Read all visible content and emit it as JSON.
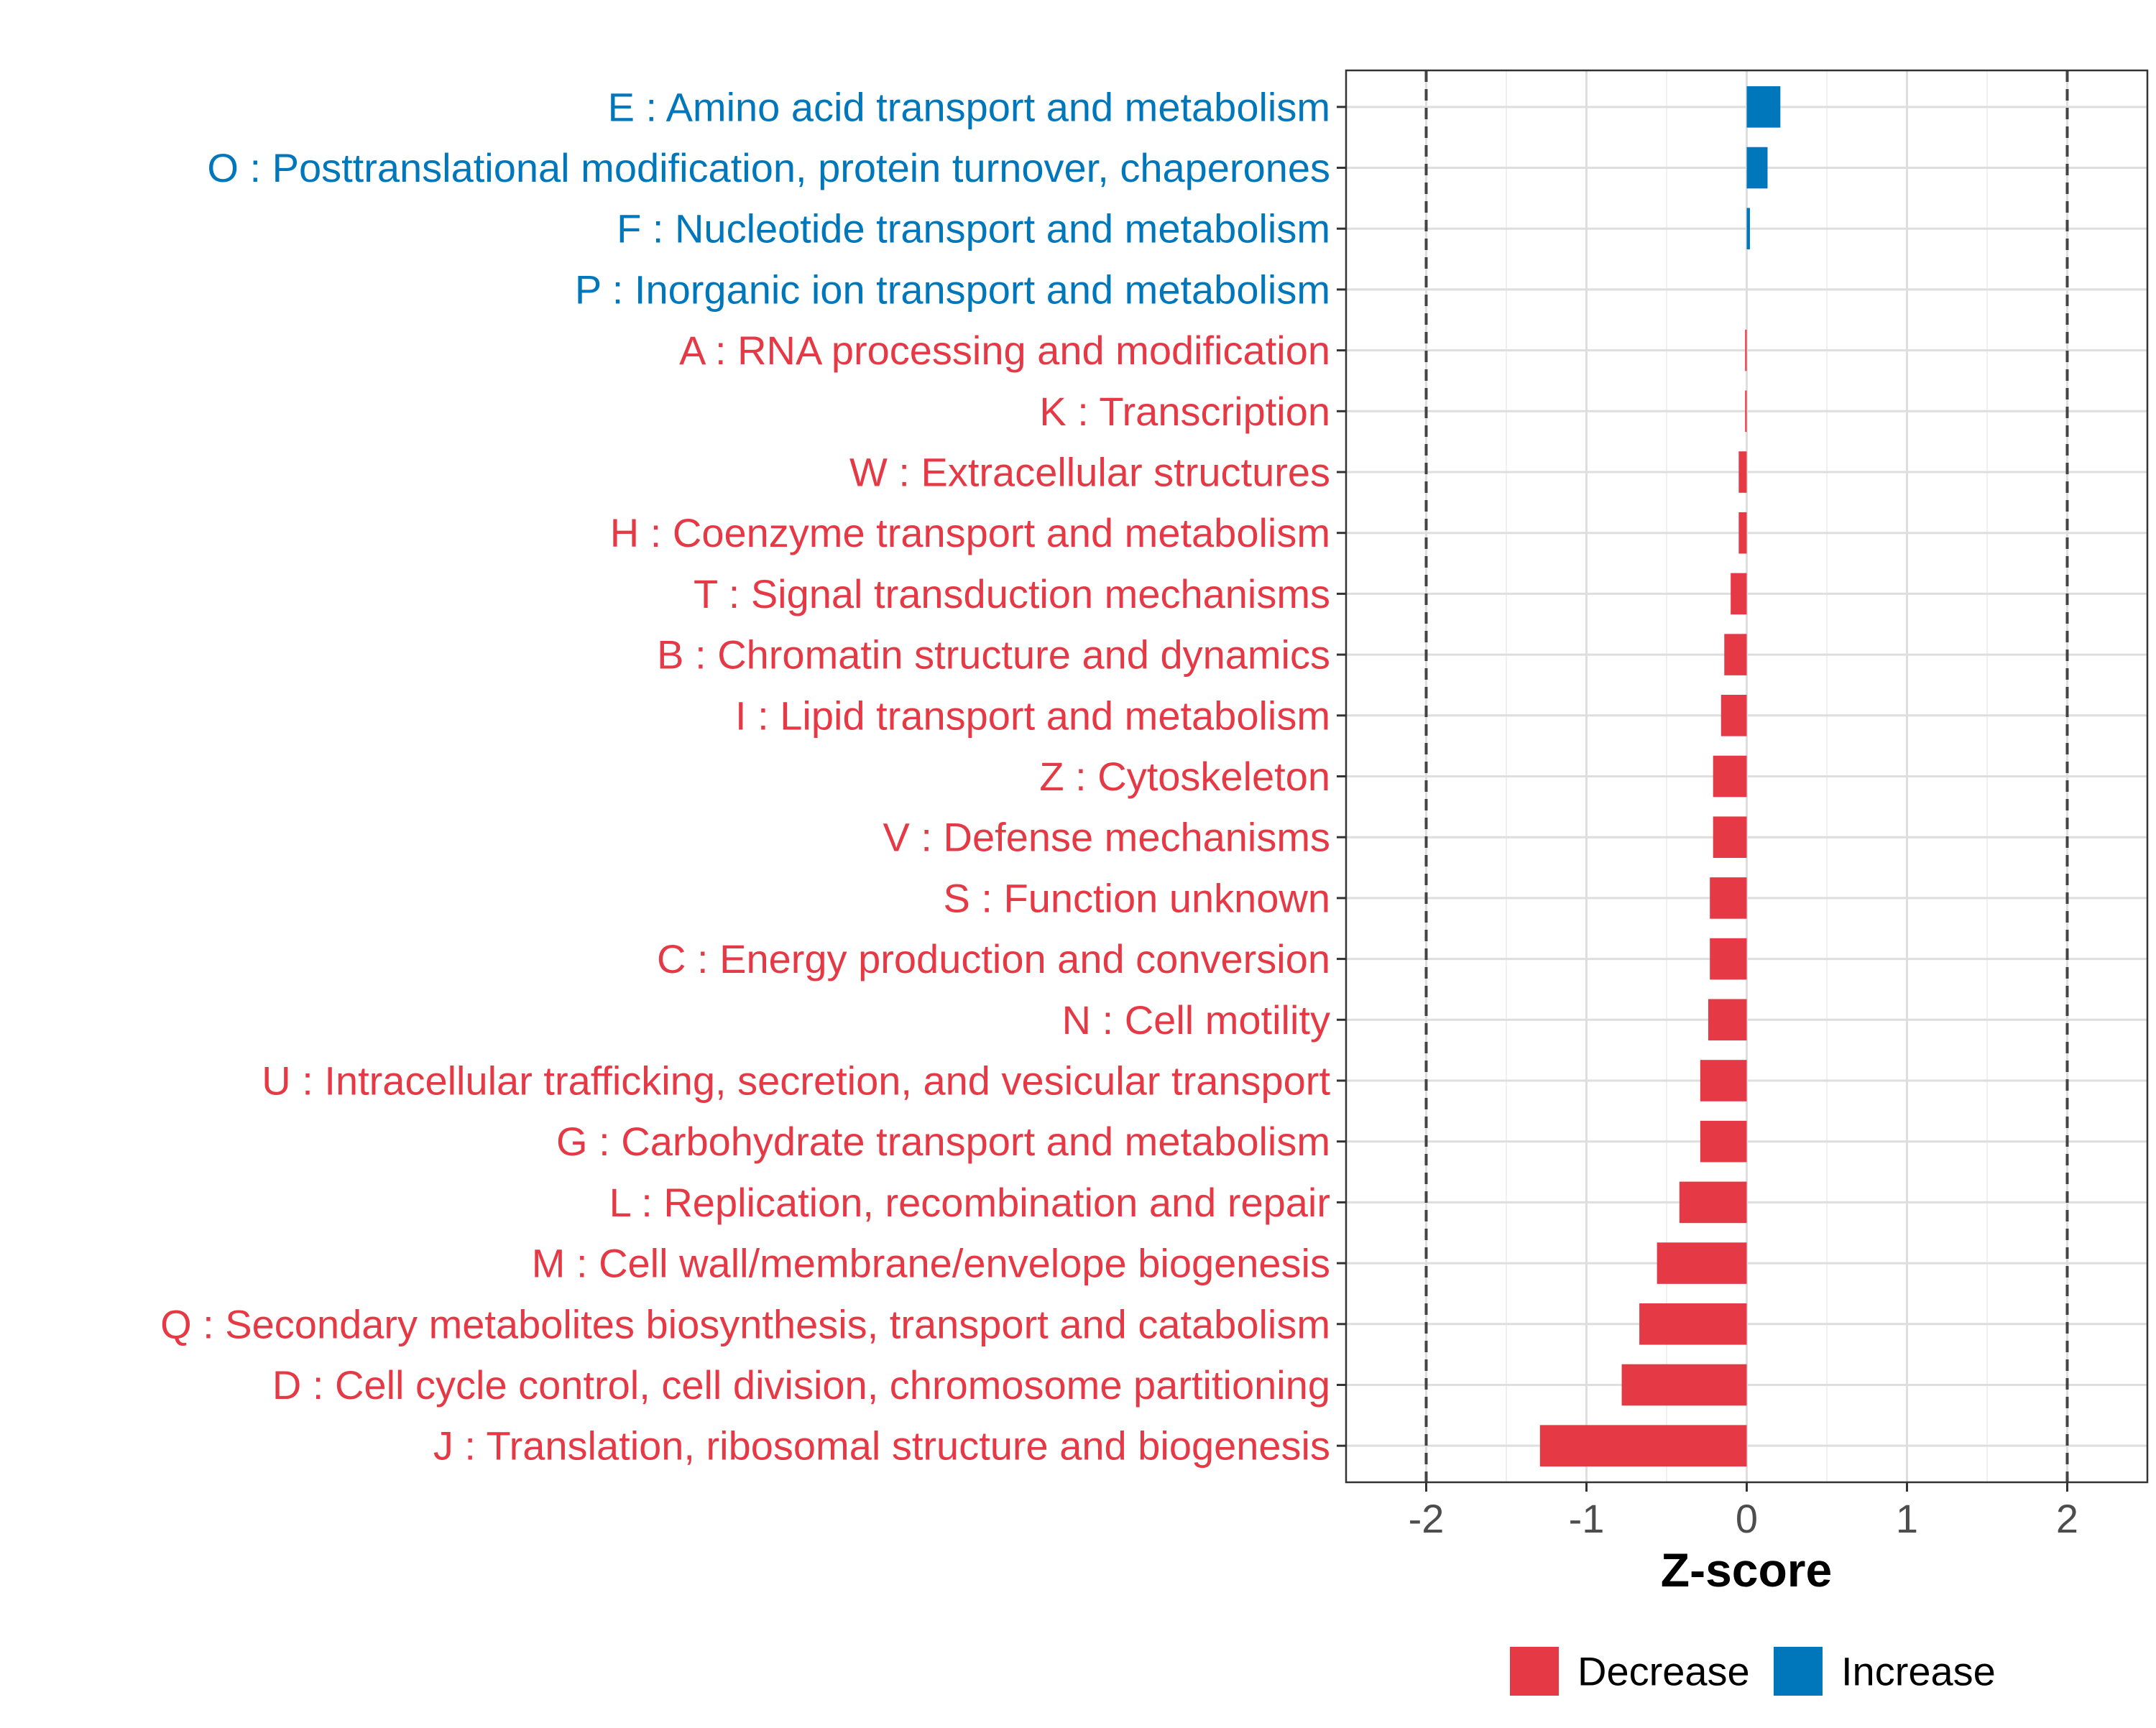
{
  "chart_data": {
    "type": "bar",
    "orientation": "horizontal",
    "xlabel": "Z-score",
    "xlim": [
      -2.5,
      2.5
    ],
    "xticks": [
      -2,
      -1,
      0,
      1,
      2
    ],
    "xtick_labels": [
      "-2",
      "-1",
      "0",
      "1",
      "2"
    ],
    "reference_lines": [
      -2,
      2
    ],
    "grid": true,
    "legend_position": "bottom",
    "colors": {
      "Decrease": "#E63946",
      "Increase": "#0077BB"
    },
    "legend": [
      {
        "name": "Decrease",
        "color": "#E63946"
      },
      {
        "name": "Increase",
        "color": "#0077BB"
      }
    ],
    "categories": [
      {
        "label": "E : Amino acid transport and metabolism",
        "value": 0.21,
        "group": "Increase"
      },
      {
        "label": "O : Posttranslational modification, protein turnover, chaperones",
        "value": 0.13,
        "group": "Increase"
      },
      {
        "label": "F : Nucleotide transport and metabolism",
        "value": 0.02,
        "group": "Increase"
      },
      {
        "label": "P : Inorganic ion transport and metabolism",
        "value": 0.0,
        "group": "Increase"
      },
      {
        "label": "A : RNA processing and modification",
        "value": -0.01,
        "group": "Decrease"
      },
      {
        "label": "K : Transcription",
        "value": -0.01,
        "group": "Decrease"
      },
      {
        "label": "W : Extracellular structures",
        "value": -0.05,
        "group": "Decrease"
      },
      {
        "label": "H : Coenzyme transport and metabolism",
        "value": -0.05,
        "group": "Decrease"
      },
      {
        "label": "T : Signal transduction mechanisms",
        "value": -0.1,
        "group": "Decrease"
      },
      {
        "label": "B : Chromatin structure and dynamics",
        "value": -0.14,
        "group": "Decrease"
      },
      {
        "label": "I : Lipid transport and metabolism",
        "value": -0.16,
        "group": "Decrease"
      },
      {
        "label": "Z : Cytoskeleton",
        "value": -0.21,
        "group": "Decrease"
      },
      {
        "label": "V : Defense mechanisms",
        "value": -0.21,
        "group": "Decrease"
      },
      {
        "label": "S : Function unknown",
        "value": -0.23,
        "group": "Decrease"
      },
      {
        "label": "C : Energy production and conversion",
        "value": -0.23,
        "group": "Decrease"
      },
      {
        "label": "N : Cell motility",
        "value": -0.24,
        "group": "Decrease"
      },
      {
        "label": "U : Intracellular trafficking, secretion, and vesicular transport",
        "value": -0.29,
        "group": "Decrease"
      },
      {
        "label": "G : Carbohydrate transport and metabolism",
        "value": -0.29,
        "group": "Decrease"
      },
      {
        "label": "L : Replication, recombination and repair",
        "value": -0.42,
        "group": "Decrease"
      },
      {
        "label": "M : Cell wall/membrane/envelope biogenesis",
        "value": -0.56,
        "group": "Decrease"
      },
      {
        "label": "Q : Secondary metabolites biosynthesis, transport and catabolism",
        "value": -0.67,
        "group": "Decrease"
      },
      {
        "label": "D : Cell cycle control, cell division, chromosome partitioning",
        "value": -0.78,
        "group": "Decrease"
      },
      {
        "label": "J : Translation, ribosomal structure and biogenesis",
        "value": -1.29,
        "group": "Decrease"
      }
    ]
  }
}
